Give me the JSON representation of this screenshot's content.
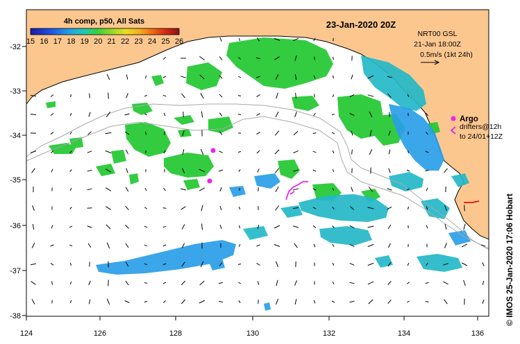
{
  "map": {
    "title": "23-Jan-2020 20Z",
    "colorbar": {
      "title": "4h comp, p50, All Sats",
      "labels": [
        "15",
        "16",
        "17",
        "18",
        "19",
        "20",
        "21",
        "22",
        "23",
        "24",
        "25",
        "26"
      ]
    },
    "lon_labels": [
      "124",
      "126",
      "128",
      "130",
      "132",
      "134",
      "136"
    ],
    "lat_labels": [
      "-32",
      "-33",
      "-34",
      "-35",
      "-36",
      "-37",
      "-38"
    ],
    "current_info": {
      "line1": "NRT00 GSL",
      "line2": "21-Jan 18:00Z",
      "line3": "0.5m/s (1kt 24h)"
    },
    "argo_label": "Argo",
    "drifter_line1": "drifters@12h",
    "drifter_line2": "to 24/01+12Z",
    "credit": "© IMOS 25-Jan-2020 17:06 Hobart"
  },
  "colors": {
    "land": "#fbc78f",
    "sst_green": "#22c830",
    "sst_cyan": "#24b8c8",
    "sst_blue": "#2a9ee8",
    "argo": "#ee22ee",
    "drifter_red": "#e01010"
  }
}
